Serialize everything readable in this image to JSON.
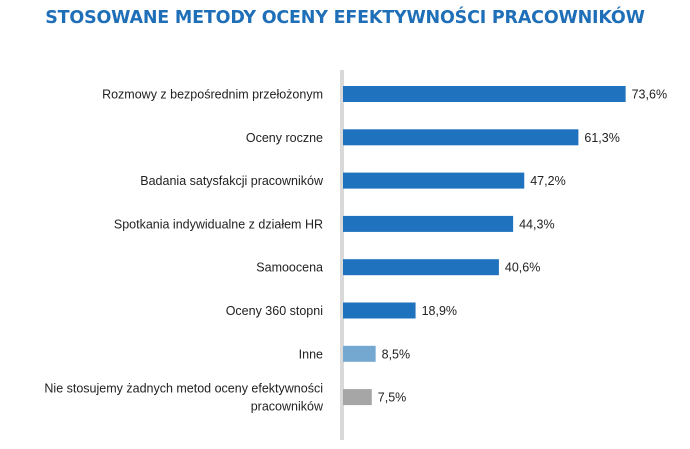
{
  "chart_data": {
    "type": "bar",
    "orientation": "horizontal",
    "title": "STOSOWANE METODY OCENY EFEKTYWNOŚCI PRACOWNIKÓW",
    "categories": [
      "Rozmowy z bezpośrednim przełożonym",
      "Oceny roczne",
      "Badania satysfakcji pracowników",
      "Spotkania indywidualne z działem HR",
      "Samoocena",
      "Oceny 360 stopni",
      "Inne",
      "Nie stosujemy żadnych metod oceny efektywności pracowników"
    ],
    "category_lines": [
      [
        "Rozmowy z bezpośrednim przełożonym"
      ],
      [
        "Oceny roczne"
      ],
      [
        "Badania satysfakcji pracowników"
      ],
      [
        "Spotkania indywidualne z działem HR"
      ],
      [
        "Samoocena"
      ],
      [
        "Oceny 360 stopni"
      ],
      [
        "Inne"
      ],
      [
        "Nie stosujemy żadnych metod oceny efektywności",
        "pracowników"
      ]
    ],
    "values": [
      73.6,
      61.3,
      47.2,
      44.3,
      40.6,
      18.9,
      8.5,
      7.5
    ],
    "value_labels": [
      "73,6%",
      "61,3%",
      "47,2%",
      "44,3%",
      "40,6%",
      "18,9%",
      "8,5%",
      "7,5%"
    ],
    "bar_colors": [
      "#1f72bd",
      "#1f72bd",
      "#1f72bd",
      "#1f72bd",
      "#1f72bd",
      "#1f72bd",
      "#74a8d0",
      "#a6a6a6"
    ],
    "axis_color": "#d9d9d9",
    "xlim": [
      0,
      75
    ],
    "grid": false,
    "legend": "none"
  }
}
